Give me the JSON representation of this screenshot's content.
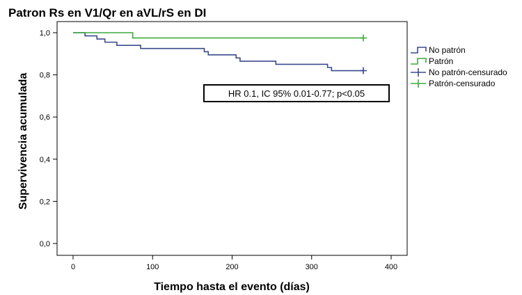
{
  "chart_data": {
    "type": "line",
    "subtype": "kaplan-meier-step",
    "title": "Patron Rs en V1/Qr en aVL/rS en DI",
    "xlabel": "Tiempo hasta el evento (días)",
    "ylabel": "Supervivencia acumulada",
    "xlim": [
      0,
      400
    ],
    "ylim": [
      0,
      1.0
    ],
    "x_ticks": [
      0,
      100,
      200,
      300,
      400
    ],
    "x_tick_labels": [
      "0",
      "100",
      "200",
      "300",
      "400"
    ],
    "y_ticks": [
      0,
      0.2,
      0.4,
      0.6,
      0.8,
      1.0
    ],
    "y_tick_labels": [
      "0,0",
      "0,2",
      "0,4",
      "0,6",
      "0,8",
      "1,0"
    ],
    "grid": false,
    "legend_position": "right",
    "series": [
      {
        "name": "No patrón",
        "color": "#3a4a8c",
        "steps": [
          [
            0,
            1.0
          ],
          [
            15,
            0.985
          ],
          [
            30,
            0.97
          ],
          [
            40,
            0.955
          ],
          [
            55,
            0.94
          ],
          [
            85,
            0.925
          ],
          [
            165,
            0.91
          ],
          [
            170,
            0.895
          ],
          [
            205,
            0.88
          ],
          [
            210,
            0.865
          ],
          [
            255,
            0.85
          ],
          [
            320,
            0.835
          ],
          [
            325,
            0.82
          ],
          [
            365,
            0.82
          ]
        ]
      },
      {
        "name": "Patrón",
        "color": "#3aaa3a",
        "steps": [
          [
            0,
            1.0
          ],
          [
            75,
            1.0
          ],
          [
            75,
            0.975
          ],
          [
            365,
            0.975
          ]
        ]
      }
    ],
    "censored": [
      {
        "name": "No patrón-censurado",
        "color": "#3a4a8c",
        "points": [
          [
            365,
            0.82
          ]
        ]
      },
      {
        "name": "Patrón-censurado",
        "color": "#3aaa3a",
        "points": [
          [
            365,
            0.975
          ]
        ]
      }
    ],
    "annotation": "HR 0.1, IC 95% 0.01-0.77; p<0.05"
  }
}
